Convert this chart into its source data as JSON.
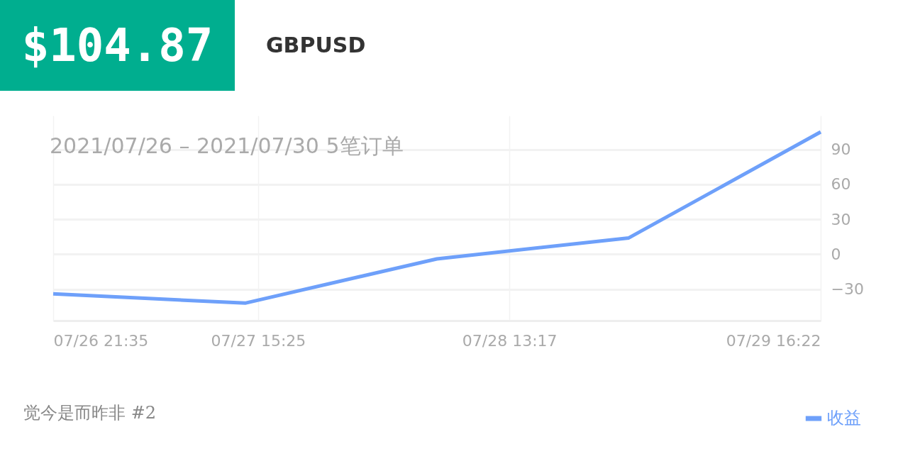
{
  "chart_data": {
    "type": "line",
    "title": "GBPUSD",
    "subtitle": "2021/07/26 – 2021/07/30  5笔订单",
    "annotations": [
      "$104.87",
      "觉今是而昨非 #2"
    ],
    "x": [
      "2021-07-26T21:35",
      "2021-07-27T14:17",
      "2021-07-28T06:58",
      "2021-07-28T23:40",
      "2021-07-29T16:22"
    ],
    "series": [
      {
        "name": "收益",
        "color": "#6ea0fa",
        "values": [
          -34,
          -42,
          -4,
          14,
          105
        ]
      }
    ],
    "xlim": [
      "2021-07-26T21:35",
      "2021-07-29T16:22"
    ],
    "xticks": [
      {
        "value": "2021-07-26T21:35",
        "label": "07/26 21:35"
      },
      {
        "value": "2021-07-27T15:25",
        "label": "07/27 15:25"
      },
      {
        "value": "2021-07-28T13:17",
        "label": "07/28 13:17"
      },
      {
        "value": "2021-07-29T16:22",
        "label": "07/29 16:22"
      }
    ],
    "ylim": [
      -57,
      119
    ],
    "yticks": [
      -30,
      0,
      30,
      60,
      90
    ],
    "grid": true,
    "legend": "bottom right",
    "marker": "none",
    "line_style": "solid"
  }
}
